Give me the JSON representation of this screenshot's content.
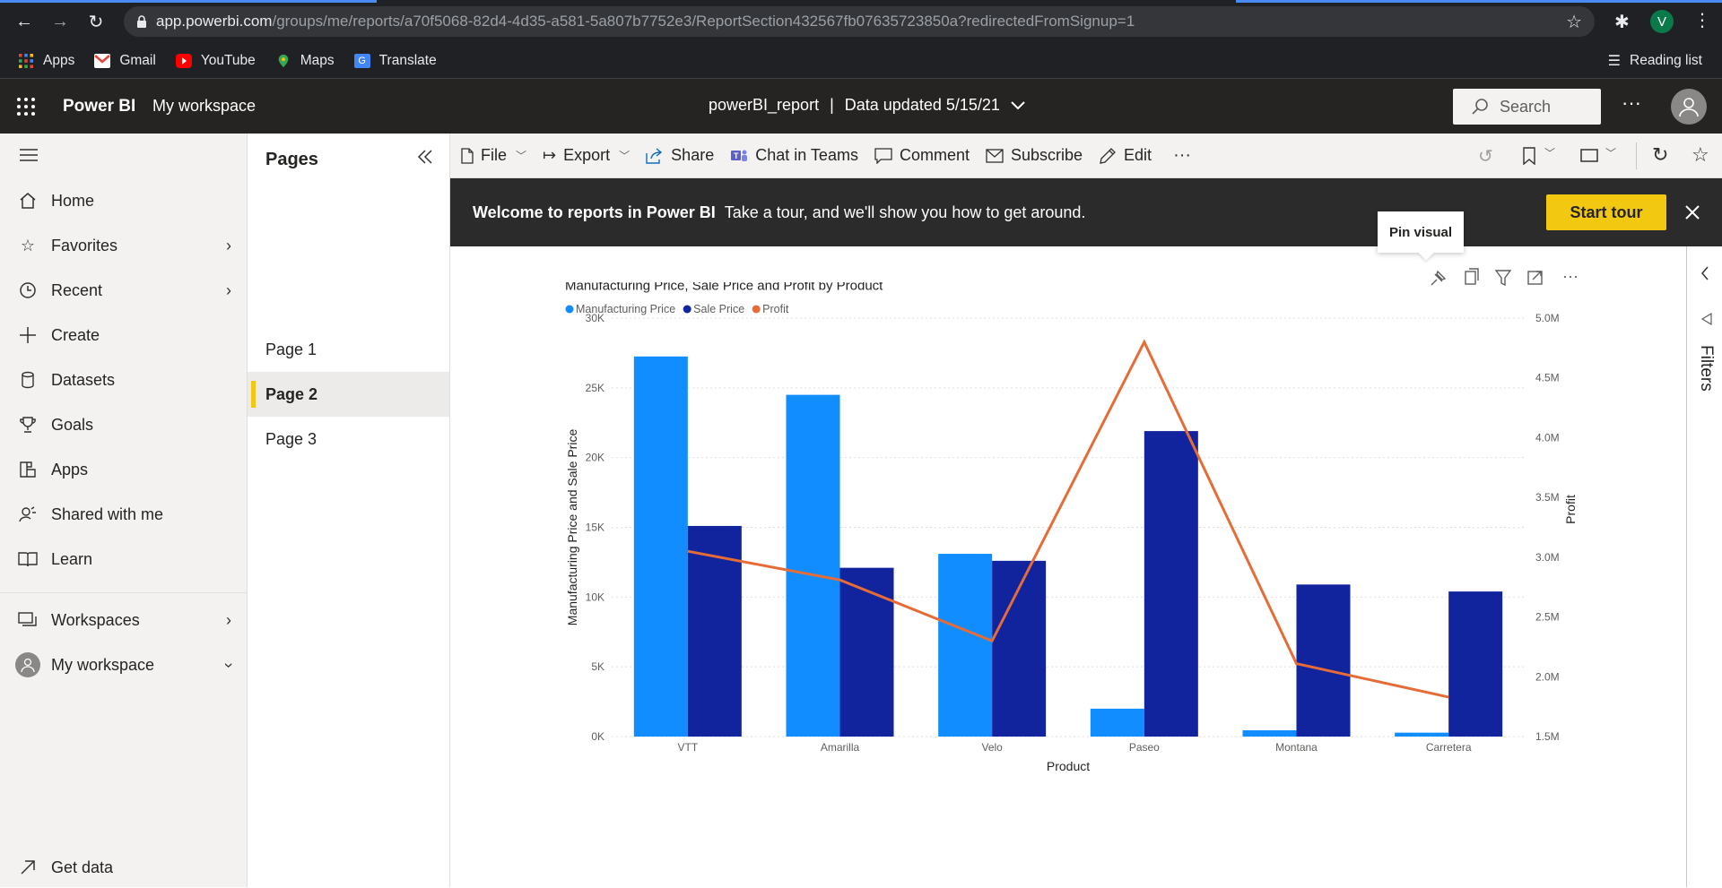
{
  "browser": {
    "url_host": "app.powerbi.com",
    "url_path": "/groups/me/reports/a70f5068-82d4-4d35-a581-5a807b7752e3/ReportSection432567fb07635723850a?redirectedFromSignup=1",
    "profile_initial": "V",
    "bookmarks": [
      "Apps",
      "Gmail",
      "YouTube",
      "Maps",
      "Translate"
    ],
    "reading_list": "Reading list"
  },
  "header": {
    "app_name": "Power BI",
    "workspace": "My workspace",
    "report_name": "powerBI_report",
    "separator": "|",
    "data_updated": "Data updated 5/15/21",
    "search_placeholder": "Search"
  },
  "leftnav": {
    "items": [
      {
        "label": "Home",
        "icon": "home-icon"
      },
      {
        "label": "Favorites",
        "icon": "star-icon"
      },
      {
        "label": "Recent",
        "icon": "clock-icon"
      },
      {
        "label": "Create",
        "icon": "plus-icon"
      },
      {
        "label": "Datasets",
        "icon": "database-icon"
      },
      {
        "label": "Goals",
        "icon": "trophy-icon"
      },
      {
        "label": "Apps",
        "icon": "apps-icon"
      },
      {
        "label": "Shared with me",
        "icon": "person-share-icon"
      },
      {
        "label": "Learn",
        "icon": "book-icon"
      },
      {
        "label": "Workspaces",
        "icon": "workspaces-icon"
      },
      {
        "label": "My workspace",
        "icon": "avatar-icon"
      },
      {
        "label": "Get data",
        "icon": "arrow-up-right-icon"
      }
    ]
  },
  "pages": {
    "title": "Pages",
    "items": [
      "Page 1",
      "Page 2",
      "Page 3"
    ],
    "active_index": 1
  },
  "toolbar": {
    "file": "File",
    "export": "Export",
    "share": "Share",
    "chat": "Chat in Teams",
    "comment": "Comment",
    "subscribe": "Subscribe",
    "edit": "Edit"
  },
  "banner": {
    "bold": "Welcome to reports in Power BI",
    "text": "Take a tour, and we'll show you how to get around.",
    "button": "Start tour"
  },
  "tooltip": "Pin visual",
  "filters_label": "Filters",
  "colors": {
    "manufacturing": "#118dff",
    "sale": "#12239e",
    "profit": "#e66c37",
    "accent": "#f2c811"
  },
  "chart_data": {
    "type": "bar",
    "title": "Manufacturing Price, Sale Price and Profit by Product",
    "xlabel": "Product",
    "ylabel": "Manufacturing Price and Sale Price",
    "y2label": "Profit",
    "categories": [
      "VTT",
      "Amarilla",
      "Velo",
      "Paseo",
      "Montana",
      "Carretera"
    ],
    "ylim": [
      0,
      30000
    ],
    "y2lim": [
      1500000,
      5000000
    ],
    "yticks": [
      "0K",
      "5K",
      "10K",
      "15K",
      "20K",
      "25K",
      "30K"
    ],
    "y2ticks": [
      "1.5M",
      "2.0M",
      "2.5M",
      "3.0M",
      "3.5M",
      "4.0M",
      "4.5M",
      "5.0M"
    ],
    "legend_position": "top-left",
    "series": [
      {
        "name": "Manufacturing Price",
        "kind": "bar",
        "values": [
          27250,
          24500,
          13100,
          2000,
          450,
          280
        ]
      },
      {
        "name": "Sale Price",
        "kind": "bar",
        "values": [
          15100,
          12100,
          12600,
          21900,
          10900,
          10400
        ]
      },
      {
        "name": "Profit",
        "kind": "line",
        "axis": "secondary",
        "values": [
          3050000,
          2810000,
          2300000,
          4800000,
          2110000,
          1830000
        ]
      }
    ]
  }
}
